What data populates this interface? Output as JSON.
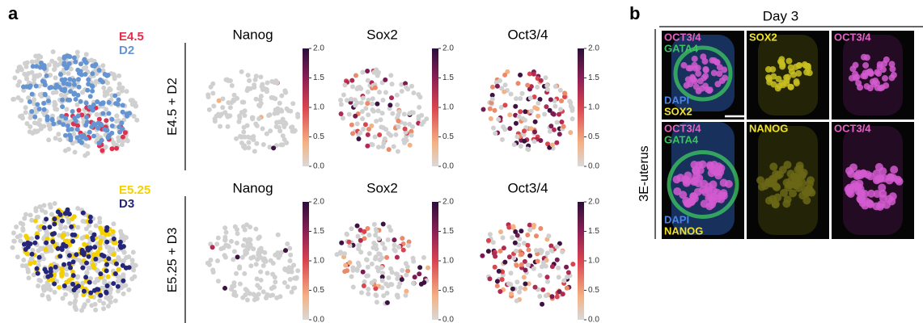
{
  "panel_a": {
    "label": "a",
    "rows": [
      {
        "legend": [
          {
            "name": "E4.5",
            "color": "#e0304e"
          },
          {
            "name": "D2",
            "color": "#6594d3"
          }
        ],
        "row_label": "E4.5 + D2",
        "genes": [
          "Nanog",
          "Sox2",
          "Oct3/4"
        ]
      },
      {
        "legend": [
          {
            "name": "E5.25",
            "color": "#f5d000"
          },
          {
            "name": "D3",
            "color": "#25267a"
          }
        ],
        "row_label": "E5.25 + D3",
        "genes": [
          "Nanog",
          "Sox2",
          "Oct3/4"
        ]
      }
    ],
    "colorbar": {
      "lim": [
        0,
        2
      ],
      "ticks": [
        {
          "value": 0,
          "label": "0.0"
        },
        {
          "value": 0.5,
          "label": "0.5"
        },
        {
          "value": 1,
          "label": "1.0"
        },
        {
          "value": 1.5,
          "label": "1.5"
        },
        {
          "value": 2,
          "label": "2.0"
        }
      ]
    }
  },
  "panel_b": {
    "label": "b",
    "title": "Day 3",
    "side_label": "3E-uterus",
    "rows": [
      {
        "cells": [
          {
            "top": [
              {
                "text": "OCT3/4",
                "color": "#e463c6"
              },
              {
                "text": "GATA4",
                "color": "#3cc062"
              }
            ],
            "bottom": [
              {
                "text": "DAPI",
                "color": "#4a86e8"
              },
              {
                "text": "SOX2",
                "color": "#f2e32a"
              }
            ]
          },
          {
            "top": [
              {
                "text": "SOX2",
                "color": "#f2e32a"
              }
            ]
          },
          {
            "top": [
              {
                "text": "OCT3/4",
                "color": "#e463c6"
              }
            ]
          }
        ]
      },
      {
        "cells": [
          {
            "top": [
              {
                "text": "OCT3/4",
                "color": "#e463c6"
              },
              {
                "text": "GATA4",
                "color": "#3cc062"
              }
            ],
            "bottom": [
              {
                "text": "DAPI",
                "color": "#4a86e8"
              },
              {
                "text": "NANOG",
                "color": "#f2e32a"
              }
            ]
          },
          {
            "top": [
              {
                "text": "NANOG",
                "color": "#f2e32a"
              }
            ]
          },
          {
            "top": [
              {
                "text": "OCT3/4",
                "color": "#e463c6"
              }
            ]
          }
        ]
      }
    ]
  }
}
